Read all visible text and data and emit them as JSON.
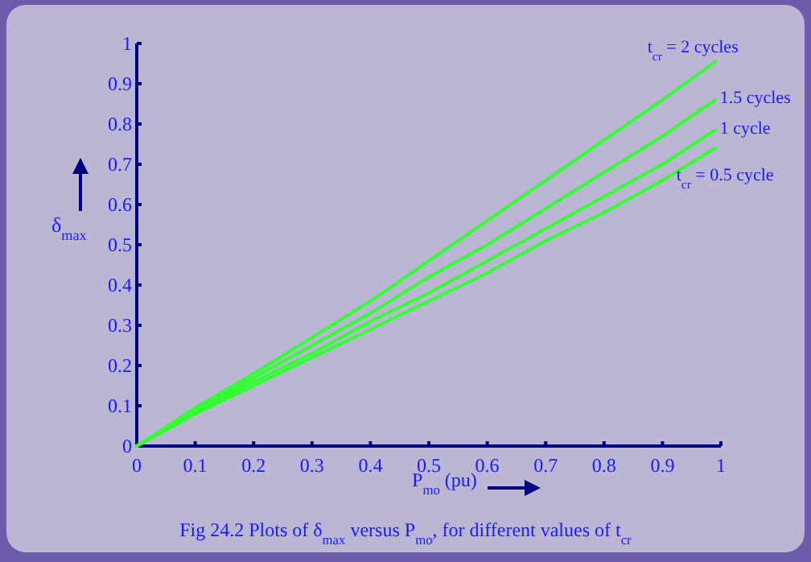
{
  "chart_data": {
    "type": "line",
    "x": [
      0,
      0.1,
      0.2,
      0.3,
      0.4,
      0.5,
      0.6,
      0.7,
      0.8,
      0.9,
      0.99
    ],
    "series": [
      {
        "name": "t$_{cr}$ = 2 cycles",
        "color": "#33ff33",
        "values": [
          0,
          0.095,
          0.18,
          0.27,
          0.36,
          0.46,
          0.56,
          0.66,
          0.76,
          0.86,
          0.955
        ]
      },
      {
        "name": "1.5 cycles",
        "color": "#33ff33",
        "values": [
          0,
          0.09,
          0.17,
          0.25,
          0.33,
          0.42,
          0.5,
          0.59,
          0.68,
          0.77,
          0.86
        ]
      },
      {
        "name": "1 cycle",
        "color": "#33ff33",
        "values": [
          0,
          0.085,
          0.16,
          0.23,
          0.31,
          0.38,
          0.46,
          0.54,
          0.62,
          0.7,
          0.785
        ]
      },
      {
        "name": "t$_{cr}$ = 0.5 cycle",
        "color": "#33ff33",
        "values": [
          0,
          0.08,
          0.15,
          0.22,
          0.29,
          0.36,
          0.43,
          0.51,
          0.58,
          0.66,
          0.74
        ]
      }
    ],
    "xlabel": "P$_{mo}$ (pu)",
    "ylabel": "δ$_{max}$",
    "xlim": [
      0,
      1
    ],
    "ylim": [
      0,
      1
    ],
    "xticks": [
      0,
      0.1,
      0.2,
      0.3,
      0.4,
      0.5,
      0.6,
      0.7,
      0.8,
      0.9,
      1
    ],
    "yticks": [
      0,
      0.1,
      0.2,
      0.3,
      0.4,
      0.5,
      0.6,
      0.7,
      0.8,
      0.9,
      1
    ],
    "grid": false,
    "marker": "none",
    "line_style": "solid",
    "annotations": [
      "Fig 24.2 Plots of δ$_{max}$ versus P$_{mo}$, for different values of t$_{cr}$"
    ]
  }
}
